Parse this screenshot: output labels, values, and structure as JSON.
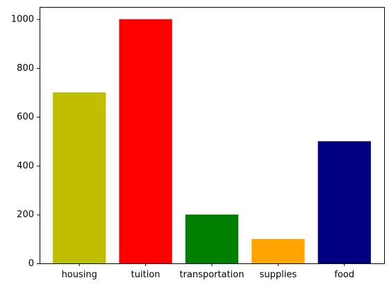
{
  "chart_data": {
    "type": "bar",
    "title": "",
    "xlabel": "",
    "ylabel": "",
    "categories": [
      "housing",
      "tuition",
      "transportation",
      "supplies",
      "food"
    ],
    "values": [
      700,
      1000,
      200,
      100,
      500
    ],
    "colors": [
      "#bfbf00",
      "#ff0000",
      "#008000",
      "#ffa500",
      "#000080"
    ],
    "ylim": [
      0,
      1050
    ],
    "yticks": [
      0,
      200,
      400,
      600,
      800,
      1000
    ],
    "grid": false,
    "legend": "none"
  }
}
